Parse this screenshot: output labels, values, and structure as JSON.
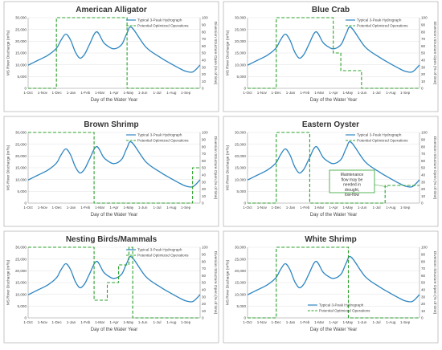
{
  "chart_data": [
    {
      "type": "line",
      "title": "American Alligator",
      "xlabel": "Day of the Water Year",
      "ylabel": "MS River Discharge (m³/s)",
      "y2label": "Diversion Structure Open (% of time)",
      "xticks": [
        "1-Oct",
        "1-Nov",
        "1-Dec",
        "1-Jan",
        "1-Feb",
        "1-Mar",
        "1-Apr",
        "1-May",
        "1-Jun",
        "1-Jul",
        "1-Aug",
        "1-Sep"
      ],
      "ylim": [
        0,
        30000
      ],
      "yticks": [
        "0",
        "5,000",
        "10,000",
        "15,000",
        "20,000",
        "25,000",
        "30,000"
      ],
      "y2lim": [
        0,
        100
      ],
      "y2ticks": [
        "0",
        "10",
        "20",
        "30",
        "40",
        "50",
        "60",
        "70",
        "80",
        "90",
        "100"
      ],
      "legend": [
        "Typical 3-Peak Hydrograph",
        "Potential Optimized Operations"
      ],
      "legend_position": "top-right",
      "series": [
        {
          "name": "Typical 3-Peak Hydrograph",
          "color": "#2e86c1",
          "x": [
            0,
            20,
            40,
            55,
            62,
            70,
            80,
            90,
            100,
            110,
            120,
            130,
            145,
            160,
            170,
            180,
            190,
            200,
            210,
            220,
            250,
            280,
            300,
            320,
            335,
            350,
            365
          ],
          "y": [
            9800,
            11800,
            13800,
            16000,
            17500,
            20500,
            23000,
            20500,
            15500,
            12800,
            14500,
            18500,
            24000,
            19500,
            17800,
            16800,
            17200,
            19000,
            23500,
            25800,
            17500,
            13200,
            10800,
            8600,
            7200,
            7000,
            9900
          ]
        },
        {
          "name": "Potential Optimized Operations",
          "color": "#2ca02c",
          "x": [
            0,
            60,
            60,
            210,
            210,
            365
          ],
          "y": [
            0,
            0,
            100,
            100,
            0,
            0
          ]
        }
      ]
    },
    {
      "type": "line",
      "title": "Blue Crab",
      "xlabel": "Day of the Water Year",
      "ylabel": "MS River Discharge (m³/s)",
      "y2label": "Diversion Structure Open (% of time)",
      "xticks": [
        "1-Oct",
        "1-Nov",
        "1-Dec",
        "1-Jan",
        "1-Feb",
        "1-Mar",
        "1-Apr",
        "1-May",
        "1-Jun",
        "1-Jul",
        "1-Aug",
        "1-Sep"
      ],
      "ylim": [
        0,
        30000
      ],
      "yticks": [
        "0",
        "5,000",
        "10,000",
        "15,000",
        "20,000",
        "25,000",
        "30,000"
      ],
      "y2lim": [
        0,
        100
      ],
      "y2ticks": [
        "0",
        "10",
        "20",
        "30",
        "40",
        "50",
        "60",
        "70",
        "80",
        "90",
        "100"
      ],
      "legend": [
        "Typical 3-Peak Hydrograph",
        "Potential Optimized Operations"
      ],
      "legend_position": "top-right",
      "series": [
        {
          "name": "Typical 3-Peak Hydrograph",
          "color": "#2e86c1",
          "x": [
            0,
            20,
            40,
            55,
            62,
            70,
            80,
            90,
            100,
            110,
            120,
            130,
            145,
            160,
            170,
            180,
            190,
            200,
            210,
            220,
            250,
            280,
            300,
            320,
            335,
            350,
            365
          ],
          "y": [
            9800,
            11800,
            13800,
            16000,
            17500,
            20500,
            23000,
            20500,
            15500,
            12800,
            14500,
            18500,
            24000,
            19500,
            17800,
            16800,
            17200,
            19000,
            23500,
            25800,
            17500,
            13200,
            10800,
            8600,
            7200,
            7000,
            9900
          ]
        },
        {
          "name": "Potential Optimized Operations",
          "color": "#2ca02c",
          "x": [
            0,
            61,
            61,
            182,
            182,
            198,
            198,
            242,
            242,
            365
          ],
          "y": [
            0,
            0,
            100,
            100,
            50,
            50,
            25,
            25,
            0,
            0
          ]
        }
      ]
    },
    {
      "type": "line",
      "title": "Brown Shrimp",
      "xlabel": "Day of the Water Year",
      "ylabel": "MS River Discharge (m³/s)",
      "y2label": "Diversion Structure Open (% of time)",
      "xticks": [
        "1-Oct",
        "1-Nov",
        "1-Dec",
        "1-Jan",
        "1-Feb",
        "1-Mar",
        "1-Apr",
        "1-May",
        "1-Jun",
        "1-Jul",
        "1-Aug",
        "1-Sep"
      ],
      "ylim": [
        0,
        30000
      ],
      "yticks": [
        "0",
        "5,000",
        "10,000",
        "15,000",
        "20,000",
        "25,000",
        "30,000"
      ],
      "y2lim": [
        0,
        100
      ],
      "y2ticks": [
        "0",
        "10",
        "20",
        "30",
        "40",
        "50",
        "60",
        "70",
        "80",
        "90",
        "100"
      ],
      "legend": [
        "Typical 3-Peak Hydrograph",
        "Potential Optimized Operations"
      ],
      "legend_position": "top-right",
      "series": [
        {
          "name": "Typical 3-Peak Hydrograph",
          "color": "#2e86c1",
          "x": [
            0,
            20,
            40,
            55,
            62,
            70,
            80,
            90,
            100,
            110,
            120,
            130,
            145,
            160,
            170,
            180,
            190,
            200,
            210,
            220,
            250,
            280,
            300,
            320,
            335,
            350,
            365
          ],
          "y": [
            9800,
            11800,
            13800,
            16000,
            17500,
            20500,
            23000,
            20500,
            15500,
            12800,
            14500,
            18500,
            24000,
            19500,
            17800,
            16800,
            17200,
            19000,
            23500,
            25800,
            17500,
            13200,
            10800,
            8600,
            7200,
            7000,
            9900
          ]
        },
        {
          "name": "Potential Optimized Operations",
          "color": "#2ca02c",
          "x": [
            0,
            140,
            140,
            349,
            349,
            365
          ],
          "y": [
            100,
            100,
            0,
            0,
            50,
            50
          ]
        }
      ]
    },
    {
      "type": "line",
      "title": "Eastern Oyster",
      "xlabel": "Day of the Water Year",
      "ylabel": "MS River Discharge (m³/s)",
      "y2label": "Diversion Structure Open (% of time)",
      "xticks": [
        "1-Oct",
        "1-Nov",
        "1-Dec",
        "1-Jan",
        "1-Feb",
        "1-Mar",
        "1-Apr",
        "1-May",
        "1-Jun",
        "1-Jul",
        "1-Aug",
        "1-Sep"
      ],
      "ylim": [
        0,
        30000
      ],
      "yticks": [
        "0",
        "5,000",
        "10,000",
        "15,000",
        "20,000",
        "25,000",
        "30,000"
      ],
      "y2lim": [
        0,
        100
      ],
      "y2ticks": [
        "0",
        "10",
        "20",
        "30",
        "40",
        "50",
        "60",
        "70",
        "80",
        "90",
        "100"
      ],
      "legend": [
        "Typical 3-Peak Hydrograph",
        "Potential Optimized Operations"
      ],
      "legend_position": "top-right",
      "annotation": "Maintenance flow may be needed in drought, low-flow",
      "series": [
        {
          "name": "Typical 3-Peak Hydrograph",
          "color": "#2e86c1",
          "x": [
            0,
            20,
            40,
            55,
            62,
            70,
            80,
            90,
            100,
            110,
            120,
            130,
            145,
            160,
            170,
            180,
            190,
            200,
            210,
            220,
            250,
            280,
            300,
            320,
            335,
            350,
            365
          ],
          "y": [
            9800,
            11800,
            13800,
            16000,
            17500,
            20500,
            23000,
            20500,
            15500,
            12800,
            14500,
            18500,
            24000,
            19500,
            17800,
            16800,
            17200,
            19000,
            23500,
            25800,
            17500,
            13200,
            10800,
            8600,
            7200,
            7000,
            9900
          ]
        },
        {
          "name": "Potential Optimized Operations",
          "color": "#2ca02c",
          "x": [
            0,
            61,
            61,
            132,
            132,
            292,
            292,
            365
          ],
          "y": [
            0,
            0,
            100,
            100,
            0,
            0,
            25,
            25
          ]
        }
      ]
    },
    {
      "type": "line",
      "title": "Nesting Birds/Mammals",
      "xlabel": "Day of the Water Year",
      "ylabel": "MS River Discharge (m³/s)",
      "y2label": "Diversion Structure Open (% of time)",
      "xticks": [
        "1-Oct",
        "1-Nov",
        "1-Dec",
        "1-Jan",
        "1-Feb",
        "1-Mar",
        "1-Apr",
        "1-May",
        "1-Jun",
        "1-Jul",
        "1-Aug",
        "1-Sep"
      ],
      "ylim": [
        0,
        30000
      ],
      "yticks": [
        "0",
        "5,000",
        "10,000",
        "15,000",
        "20,000",
        "25,000",
        "30,000"
      ],
      "y2lim": [
        0,
        100
      ],
      "y2ticks": [
        "0",
        "10",
        "20",
        "30",
        "40",
        "50",
        "60",
        "70",
        "80",
        "90",
        "100"
      ],
      "legend": [
        "Typical 3-Peak Hydrograph",
        "Potential Optimized Operations"
      ],
      "legend_position": "top-right",
      "series": [
        {
          "name": "Typical 3-Peak Hydrograph",
          "color": "#2e86c1",
          "x": [
            0,
            20,
            40,
            55,
            62,
            70,
            80,
            90,
            100,
            110,
            120,
            130,
            145,
            160,
            170,
            180,
            190,
            200,
            210,
            220,
            250,
            280,
            300,
            320,
            335,
            350,
            365
          ],
          "y": [
            9800,
            11800,
            13800,
            16000,
            17500,
            20500,
            23000,
            20500,
            15500,
            12800,
            14500,
            18500,
            24000,
            19500,
            17800,
            16800,
            17200,
            19000,
            23500,
            25800,
            17500,
            13200,
            10800,
            8600,
            7200,
            7000,
            9900
          ]
        },
        {
          "name": "Potential Optimized Operations",
          "color": "#2ca02c",
          "x": [
            0,
            140,
            140,
            168,
            168,
            192,
            192,
            214,
            214,
            222,
            222,
            365
          ],
          "y": [
            100,
            100,
            25,
            25,
            50,
            50,
            75,
            75,
            100,
            100,
            0,
            0
          ]
        }
      ]
    },
    {
      "type": "line",
      "title": "White Shrimp",
      "xlabel": "Day of the Water Year",
      "ylabel": "MS River Discharge (m³/s)",
      "y2label": "Diversion Structure Open (% of time)",
      "xticks": [
        "1-Oct",
        "1-Nov",
        "1-Dec",
        "1-Jan",
        "1-Feb",
        "1-Mar",
        "1-Apr",
        "1-May",
        "1-Jun",
        "1-Jul",
        "1-Aug",
        "1-Sep"
      ],
      "ylim": [
        0,
        30000
      ],
      "yticks": [
        "0",
        "5,000",
        "10,000",
        "15,000",
        "20,000",
        "25,000",
        "30,000"
      ],
      "y2lim": [
        0,
        100
      ],
      "y2ticks": [
        "0",
        "10",
        "20",
        "30",
        "40",
        "50",
        "60",
        "70",
        "80",
        "90",
        "100"
      ],
      "legend": [
        "Typical 3-Peak Hydrograph",
        "Potential Optimized Operations"
      ],
      "legend_position": "bottom-center",
      "series": [
        {
          "name": "Typical 3-Peak Hydrograph",
          "color": "#2e86c1",
          "x": [
            0,
            20,
            40,
            55,
            62,
            70,
            80,
            90,
            100,
            110,
            120,
            130,
            145,
            160,
            170,
            180,
            190,
            200,
            210,
            220,
            250,
            280,
            300,
            320,
            335,
            350,
            365
          ],
          "y": [
            9800,
            11800,
            13800,
            16000,
            17500,
            20500,
            23000,
            20500,
            15500,
            12800,
            14500,
            18500,
            24000,
            19500,
            17800,
            16800,
            17200,
            19000,
            23500,
            25800,
            17500,
            13200,
            10800,
            8600,
            7200,
            7000,
            9900
          ]
        },
        {
          "name": "Potential Optimized Operations",
          "color": "#2ca02c",
          "x": [
            0,
            61,
            61,
            214,
            214,
            365
          ],
          "y": [
            0,
            0,
            100,
            100,
            0,
            0
          ]
        }
      ]
    }
  ]
}
